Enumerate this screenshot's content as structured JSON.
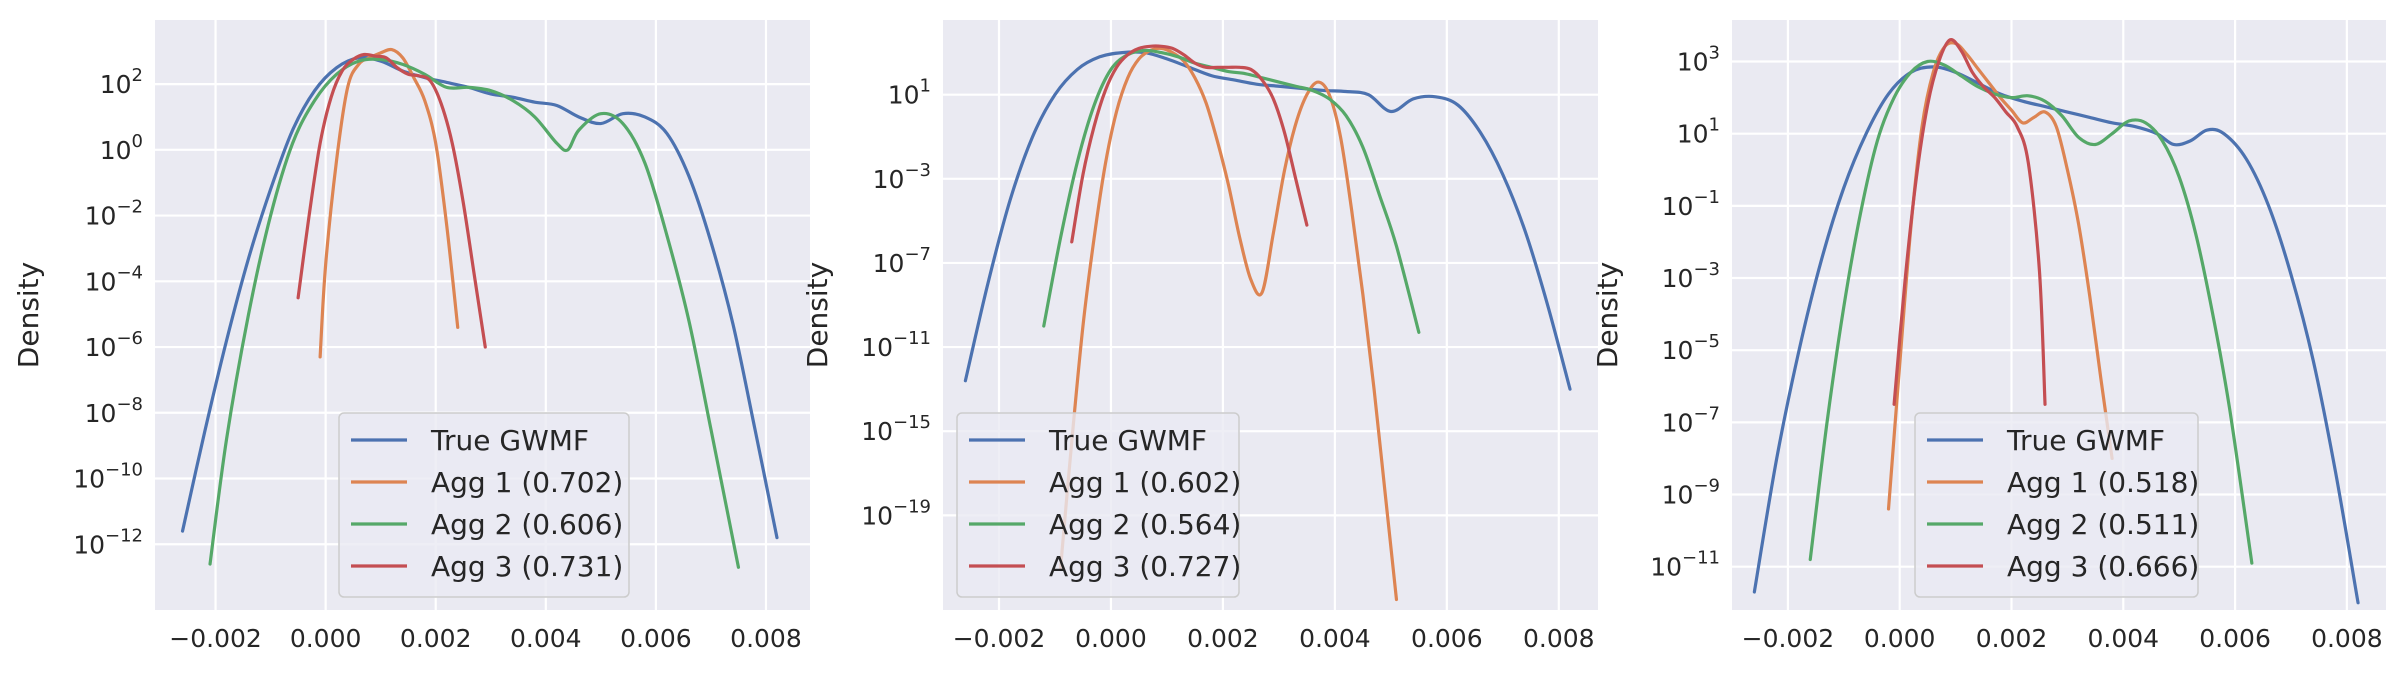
{
  "chart_data": [
    {
      "type": "line",
      "yscale": "log",
      "title": "",
      "xlabel": "",
      "ylabel": "Density",
      "xlim": [
        -0.0031,
        0.0088
      ],
      "ylim_exp": [
        -14.0,
        3.95
      ],
      "x_ticks": [
        {
          "value": -0.002,
          "label": "−0.002"
        },
        {
          "value": 0.0,
          "label": "0.000"
        },
        {
          "value": 0.002,
          "label": "0.002"
        },
        {
          "value": 0.004,
          "label": "0.004"
        },
        {
          "value": 0.006,
          "label": "0.006"
        },
        {
          "value": 0.008,
          "label": "0.008"
        }
      ],
      "y_ticks": [
        {
          "exp": 2,
          "base": "10",
          "sup": "2"
        },
        {
          "exp": 0,
          "base": "10",
          "sup": "0"
        },
        {
          "exp": -2,
          "base": "10",
          "sup": "−2"
        },
        {
          "exp": -4,
          "base": "10",
          "sup": "−4"
        },
        {
          "exp": -6,
          "base": "10",
          "sup": "−6"
        },
        {
          "exp": -8,
          "base": "10",
          "sup": "−8"
        },
        {
          "exp": -10,
          "base": "10",
          "sup": "−10"
        },
        {
          "exp": -12,
          "base": "10",
          "sup": "−12"
        }
      ],
      "grid": true,
      "legend_position": "lower-center",
      "series": [
        {
          "name": "True GWMF",
          "color": "#4c72b0",
          "x": [
            -0.0026,
            -0.0022,
            -0.0018,
            -0.0014,
            -0.001,
            -0.0006,
            -0.0002,
            0.0002,
            0.0006,
            0.001,
            0.0014,
            0.0018,
            0.0022,
            0.0026,
            0.003,
            0.0034,
            0.0038,
            0.0042,
            0.0046,
            0.005,
            0.0054,
            0.0058,
            0.0062,
            0.0066,
            0.007,
            0.0074,
            0.0078,
            0.0082
          ],
          "log10_y": [
            -11.6,
            -8.6,
            -5.8,
            -3.3,
            -1.2,
            0.6,
            1.8,
            2.5,
            2.8,
            2.7,
            2.4,
            2.2,
            2.05,
            1.9,
            1.7,
            1.6,
            1.45,
            1.35,
            1.0,
            0.8,
            1.1,
            1.0,
            0.5,
            -0.8,
            -2.8,
            -5.3,
            -8.5,
            -11.8
          ]
        },
        {
          "name": "Agg 1 (0.702)",
          "color": "#dd8452",
          "x": [
            -0.0001,
            0.0,
            0.0002,
            0.0004,
            0.0006,
            0.0008,
            0.001,
            0.0012,
            0.0014,
            0.0016,
            0.0018,
            0.002,
            0.0022,
            0.0024
          ],
          "log10_y": [
            -6.3,
            -3.5,
            -0.3,
            1.9,
            2.6,
            2.8,
            2.95,
            3.05,
            2.8,
            2.2,
            1.5,
            0.2,
            -2.3,
            -5.4
          ]
        },
        {
          "name": "Agg 2 (0.606)",
          "color": "#55a868",
          "x": [
            -0.0021,
            -0.0018,
            -0.0014,
            -0.001,
            -0.0006,
            -0.0002,
            0.0002,
            0.0006,
            0.001,
            0.0014,
            0.0018,
            0.0022,
            0.0026,
            0.003,
            0.0034,
            0.0038,
            0.0042,
            0.0044,
            0.0046,
            0.005,
            0.0054,
            0.0058,
            0.0062,
            0.0066,
            0.007,
            0.0075
          ],
          "log10_y": [
            -12.6,
            -8.8,
            -5.0,
            -2.0,
            0.2,
            1.5,
            2.3,
            2.7,
            2.75,
            2.6,
            2.3,
            1.9,
            1.9,
            1.8,
            1.5,
            1.0,
            0.2,
            0.0,
            0.6,
            1.1,
            0.8,
            -0.4,
            -2.6,
            -5.2,
            -8.5,
            -12.7
          ]
        },
        {
          "name": "Agg 3 (0.731)",
          "color": "#c44e52",
          "x": [
            -0.0005,
            -0.0003,
            -0.0001,
            0.0001,
            0.0003,
            0.0005,
            0.0007,
            0.0009,
            0.0011,
            0.0013,
            0.0015,
            0.0017,
            0.0019,
            0.0021,
            0.0023,
            0.0025,
            0.0027,
            0.0029
          ],
          "log10_y": [
            -4.5,
            -2.0,
            0.2,
            1.6,
            2.4,
            2.75,
            2.9,
            2.85,
            2.8,
            2.5,
            2.3,
            2.25,
            2.1,
            1.4,
            0.2,
            -1.6,
            -3.8,
            -6.0
          ]
        }
      ]
    },
    {
      "type": "line",
      "yscale": "log",
      "title": "",
      "xlabel": "",
      "ylabel": "Density",
      "xlim": [
        -0.003,
        0.0087
      ],
      "ylim_exp": [
        -23.5,
        4.55
      ],
      "x_ticks": [
        {
          "value": -0.002,
          "label": "−0.002"
        },
        {
          "value": 0.0,
          "label": "0.000"
        },
        {
          "value": 0.002,
          "label": "0.002"
        },
        {
          "value": 0.004,
          "label": "0.004"
        },
        {
          "value": 0.006,
          "label": "0.006"
        },
        {
          "value": 0.008,
          "label": "0.008"
        }
      ],
      "y_ticks": [
        {
          "exp": 1,
          "base": "10",
          "sup": "1"
        },
        {
          "exp": -3,
          "base": "10",
          "sup": "−3"
        },
        {
          "exp": -7,
          "base": "10",
          "sup": "−7"
        },
        {
          "exp": -11,
          "base": "10",
          "sup": "−11"
        },
        {
          "exp": -15,
          "base": "10",
          "sup": "−15"
        },
        {
          "exp": -19,
          "base": "10",
          "sup": "−19"
        }
      ],
      "grid": true,
      "legend_position": "lower-left",
      "series": [
        {
          "name": "True GWMF",
          "color": "#4c72b0",
          "x": [
            -0.0026,
            -0.0022,
            -0.0018,
            -0.0014,
            -0.001,
            -0.0006,
            -0.0002,
            0.0002,
            0.0006,
            0.001,
            0.0014,
            0.0018,
            0.0022,
            0.0026,
            0.003,
            0.0034,
            0.0038,
            0.0042,
            0.0046,
            0.005,
            0.0054,
            0.0058,
            0.0062,
            0.0066,
            0.007,
            0.0074,
            0.0078,
            0.0082
          ],
          "log10_y": [
            -12.6,
            -8.0,
            -4.0,
            -1.0,
            1.0,
            2.2,
            2.8,
            3.0,
            3.0,
            2.7,
            2.3,
            1.9,
            1.7,
            1.5,
            1.4,
            1.3,
            1.2,
            1.15,
            1.0,
            0.2,
            0.8,
            0.9,
            0.5,
            -0.8,
            -2.8,
            -5.5,
            -9.0,
            -13.0
          ]
        },
        {
          "name": "Agg 1 (0.602)",
          "color": "#dd8452",
          "x": [
            -0.0009,
            -0.0007,
            -0.0005,
            -0.0003,
            -0.0001,
            0.0001,
            0.0003,
            0.0005,
            0.0007,
            0.0009,
            0.0011,
            0.0013,
            0.0015,
            0.0017,
            0.0019,
            0.0021,
            0.0023,
            0.0025,
            0.0027,
            0.0029,
            0.0031,
            0.0033,
            0.0035,
            0.0037,
            0.0039,
            0.0041,
            0.0043,
            0.0045,
            0.0047,
            0.0049,
            0.0051
          ],
          "log10_y": [
            -21.5,
            -15.5,
            -10.0,
            -5.8,
            -2.3,
            0.2,
            1.8,
            2.7,
            3.1,
            3.2,
            3.0,
            2.6,
            1.8,
            0.6,
            -1.2,
            -3.3,
            -5.8,
            -7.8,
            -8.4,
            -5.6,
            -2.6,
            -0.4,
            1.0,
            1.6,
            1.0,
            -1.0,
            -4.5,
            -8.5,
            -13.0,
            -18.0,
            -23.0
          ]
        },
        {
          "name": "Agg 2 (0.564)",
          "color": "#55a868",
          "x": [
            -0.0012,
            -0.0009,
            -0.0006,
            -0.0003,
            0.0,
            0.0003,
            0.0006,
            0.0009,
            0.0012,
            0.0015,
            0.0018,
            0.0021,
            0.0024,
            0.0027,
            0.003,
            0.0033,
            0.0036,
            0.0039,
            0.0042,
            0.0045,
            0.0048,
            0.0051,
            0.0055
          ],
          "log10_y": [
            -10.0,
            -5.8,
            -2.2,
            0.5,
            2.2,
            2.9,
            3.1,
            3.0,
            2.8,
            2.5,
            2.3,
            2.1,
            2.0,
            1.8,
            1.6,
            1.4,
            1.2,
            0.8,
            0.0,
            -1.5,
            -3.8,
            -6.2,
            -10.3
          ]
        },
        {
          "name": "Agg 3 (0.727)",
          "color": "#c44e52",
          "x": [
            -0.0007,
            -0.0005,
            -0.0003,
            -0.0001,
            0.0001,
            0.0003,
            0.0005,
            0.0007,
            0.0009,
            0.0011,
            0.0013,
            0.0015,
            0.0017,
            0.0019,
            0.0021,
            0.0023,
            0.0025,
            0.0027,
            0.0029,
            0.0031,
            0.0033,
            0.0035
          ],
          "log10_y": [
            -6.0,
            -2.8,
            -0.5,
            1.2,
            2.3,
            2.9,
            3.2,
            3.3,
            3.3,
            3.2,
            2.9,
            2.5,
            2.3,
            2.3,
            2.3,
            2.3,
            2.2,
            1.7,
            0.8,
            -0.8,
            -3.0,
            -5.2
          ]
        }
      ]
    },
    {
      "type": "line",
      "yscale": "log",
      "title": "",
      "xlabel": "",
      "ylabel": "Density",
      "xlim": [
        -0.003,
        0.0087
      ],
      "ylim_exp": [
        -12.2,
        4.15
      ],
      "x_ticks": [
        {
          "value": -0.002,
          "label": "−0.002"
        },
        {
          "value": 0.0,
          "label": "0.000"
        },
        {
          "value": 0.002,
          "label": "0.002"
        },
        {
          "value": 0.004,
          "label": "0.004"
        },
        {
          "value": 0.006,
          "label": "0.006"
        },
        {
          "value": 0.008,
          "label": "0.008"
        }
      ],
      "y_ticks": [
        {
          "exp": 3,
          "base": "10",
          "sup": "3"
        },
        {
          "exp": 1,
          "base": "10",
          "sup": "1"
        },
        {
          "exp": -1,
          "base": "10",
          "sup": "−1"
        },
        {
          "exp": -3,
          "base": "10",
          "sup": "−3"
        },
        {
          "exp": -5,
          "base": "10",
          "sup": "−5"
        },
        {
          "exp": -7,
          "base": "10",
          "sup": "−7"
        },
        {
          "exp": -9,
          "base": "10",
          "sup": "−9"
        },
        {
          "exp": -11,
          "base": "10",
          "sup": "−11"
        }
      ],
      "grid": true,
      "legend_position": "lower-center",
      "series": [
        {
          "name": "True GWMF",
          "color": "#4c72b0",
          "x": [
            -0.0026,
            -0.0022,
            -0.0018,
            -0.0014,
            -0.001,
            -0.0006,
            -0.0002,
            0.0002,
            0.0006,
            0.001,
            0.0014,
            0.0018,
            0.0022,
            0.0026,
            0.003,
            0.0034,
            0.0038,
            0.0042,
            0.0046,
            0.0049,
            0.0052,
            0.0055,
            0.0058,
            0.0062,
            0.0066,
            0.007,
            0.0074,
            0.0078,
            0.0082
          ],
          "log10_y": [
            -11.7,
            -8.0,
            -5.0,
            -2.5,
            -0.5,
            1.0,
            2.1,
            2.7,
            2.85,
            2.7,
            2.4,
            2.1,
            1.9,
            1.75,
            1.6,
            1.45,
            1.3,
            1.2,
            1.0,
            0.7,
            0.8,
            1.1,
            1.0,
            0.3,
            -1.0,
            -2.9,
            -5.3,
            -8.4,
            -12.0
          ]
        },
        {
          "name": "Agg 1 (0.518)",
          "color": "#dd8452",
          "x": [
            -0.0002,
            0.0,
            0.0002,
            0.0004,
            0.0006,
            0.0008,
            0.001,
            0.0012,
            0.0014,
            0.0016,
            0.0018,
            0.002,
            0.0022,
            0.0024,
            0.0026,
            0.0028,
            0.003,
            0.0032,
            0.0034,
            0.0036,
            0.0038
          ],
          "log10_y": [
            -9.4,
            -5.4,
            -1.6,
            1.2,
            2.7,
            3.4,
            3.5,
            3.2,
            2.8,
            2.4,
            2.0,
            1.65,
            1.3,
            1.45,
            1.6,
            1.2,
            0.0,
            -1.5,
            -3.5,
            -5.8,
            -8.0
          ]
        },
        {
          "name": "Agg 2 (0.511)",
          "color": "#55a868",
          "x": [
            -0.0016,
            -0.0013,
            -0.001,
            -0.0007,
            -0.0004,
            -0.0001,
            0.0002,
            0.0005,
            0.0008,
            0.0011,
            0.0014,
            0.0017,
            0.002,
            0.0023,
            0.0026,
            0.0029,
            0.0032,
            0.0035,
            0.0038,
            0.0041,
            0.0044,
            0.0047,
            0.005,
            0.0053,
            0.0056,
            0.0059,
            0.0063
          ],
          "log10_y": [
            -10.8,
            -7.0,
            -3.8,
            -1.2,
            0.8,
            2.0,
            2.7,
            3.0,
            2.9,
            2.6,
            2.3,
            2.1,
            2.0,
            2.05,
            1.9,
            1.5,
            0.9,
            0.7,
            1.0,
            1.35,
            1.3,
            0.8,
            -0.2,
            -1.8,
            -4.0,
            -6.6,
            -10.9
          ]
        },
        {
          "name": "Agg 3 (0.666)",
          "color": "#c44e52",
          "x": [
            -0.0001,
            0.0001,
            0.0003,
            0.0005,
            0.0007,
            0.0009,
            0.0011,
            0.0013,
            0.0015,
            0.0017,
            0.0019,
            0.0021,
            0.0023,
            0.0025,
            0.0026
          ],
          "log10_y": [
            -6.5,
            -3.0,
            -0.2,
            1.8,
            3.0,
            3.6,
            3.3,
            2.7,
            2.3,
            2.0,
            1.6,
            1.2,
            0.2,
            -2.8,
            -6.5
          ]
        }
      ]
    }
  ]
}
